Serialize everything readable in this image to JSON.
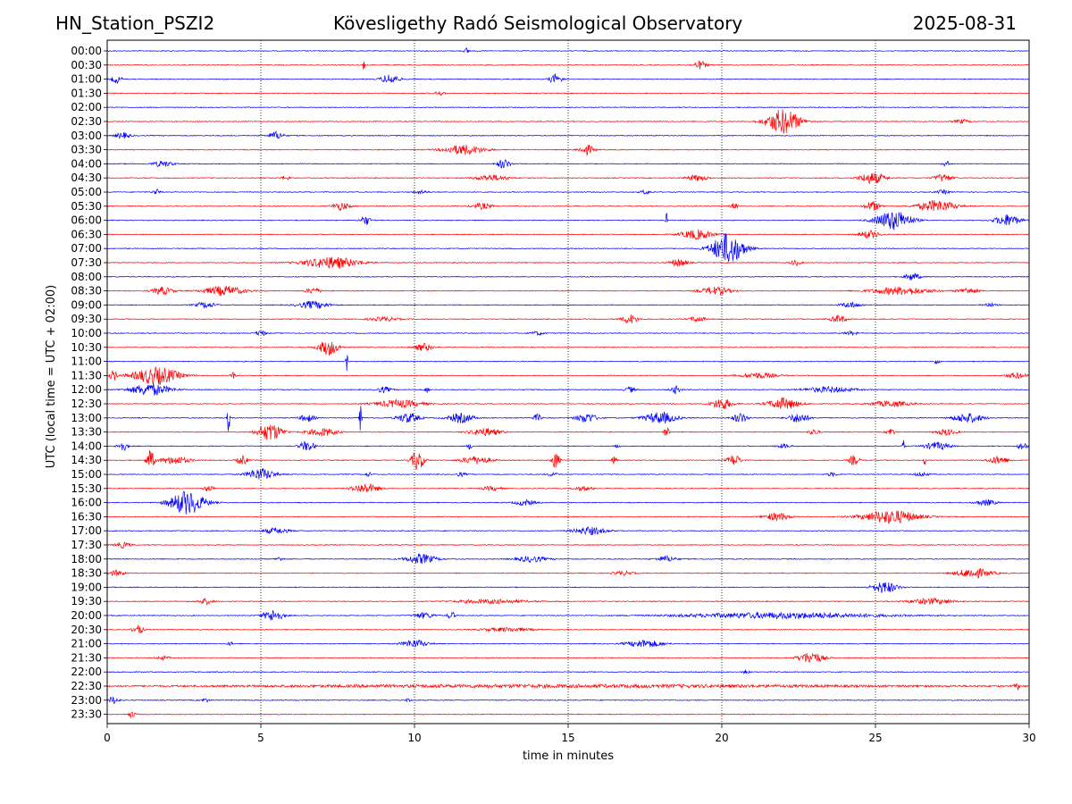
{
  "header": {
    "station": "HN_Station_PSZI2",
    "observatory": "Kövesligethy Radó Seismological Observatory",
    "date": "2025-08-31"
  },
  "chart_data": {
    "type": "line",
    "title": "Kövesligethy Radó Seismological Observatory",
    "xlabel": "time in minutes",
    "ylabel": "UTC (local time = UTC + 02:00)",
    "xlim": [
      0,
      30
    ],
    "x_ticks": [
      "0",
      "5",
      "10",
      "15",
      "20",
      "25",
      "30"
    ],
    "grid": "vertical dotted lines at 5, 10, 15, 20, 25 minutes",
    "trace_colors": [
      "#0000ff",
      "#ff0000"
    ],
    "rows": [
      {
        "label": "00:00",
        "color": "#0000ff",
        "events": [
          [
            11.7,
            0.2,
            0.3
          ]
        ]
      },
      {
        "label": "00:30",
        "color": "#ff0000",
        "events": [
          [
            8.35,
            0.05,
            1.3
          ],
          [
            19.3,
            0.5,
            0.4
          ]
        ]
      },
      {
        "label": "01:00",
        "color": "#0000ff",
        "events": [
          [
            0.3,
            0.4,
            0.4
          ],
          [
            9.2,
            0.7,
            0.5
          ],
          [
            14.6,
            0.5,
            0.5
          ]
        ]
      },
      {
        "label": "01:30",
        "color": "#ff0000",
        "events": [
          [
            10.8,
            0.4,
            0.2
          ]
        ]
      },
      {
        "label": "02:00",
        "color": "#0000ff",
        "events": []
      },
      {
        "label": "02:30",
        "color": "#ff0000",
        "events": [
          [
            22.0,
            1.3,
            1.3
          ],
          [
            27.8,
            0.6,
            0.2
          ]
        ]
      },
      {
        "label": "03:00",
        "color": "#0000ff",
        "events": [
          [
            0.5,
            0.6,
            0.3
          ],
          [
            5.5,
            0.6,
            0.4
          ]
        ]
      },
      {
        "label": "03:30",
        "color": "#ff0000",
        "events": [
          [
            11.6,
            1.6,
            0.5
          ],
          [
            15.6,
            0.6,
            0.5
          ]
        ]
      },
      {
        "label": "04:00",
        "color": "#0000ff",
        "events": [
          [
            1.8,
            0.8,
            0.3
          ],
          [
            12.9,
            0.5,
            0.5
          ],
          [
            27.3,
            0.3,
            0.3
          ]
        ]
      },
      {
        "label": "04:30",
        "color": "#ff0000",
        "events": [
          [
            5.8,
            0.4,
            0.2
          ],
          [
            12.5,
            1.3,
            0.3
          ],
          [
            19.2,
            0.8,
            0.3
          ],
          [
            24.9,
            1.0,
            0.6
          ],
          [
            27.2,
            0.7,
            0.4
          ]
        ]
      },
      {
        "label": "05:00",
        "color": "#0000ff",
        "events": [
          [
            1.6,
            0.3,
            0.3
          ],
          [
            10.2,
            0.5,
            0.2
          ],
          [
            17.5,
            0.4,
            0.2
          ],
          [
            27.2,
            0.5,
            0.2
          ]
        ]
      },
      {
        "label": "05:30",
        "color": "#ff0000",
        "events": [
          [
            7.6,
            0.7,
            0.4
          ],
          [
            12.2,
            0.8,
            0.3
          ],
          [
            20.4,
            0.3,
            0.3
          ],
          [
            24.9,
            0.6,
            0.5
          ],
          [
            27.0,
            1.5,
            0.6
          ]
        ]
      },
      {
        "label": "06:00",
        "color": "#0000ff",
        "events": [
          [
            8.4,
            0.4,
            0.5
          ],
          [
            18.2,
            0.06,
            0.8
          ],
          [
            25.6,
            1.4,
            1.0
          ],
          [
            29.3,
            1.0,
            0.6
          ]
        ]
      },
      {
        "label": "06:30",
        "color": "#ff0000",
        "events": [
          [
            19.2,
            1.3,
            0.5
          ],
          [
            24.8,
            0.8,
            0.4
          ]
        ]
      },
      {
        "label": "07:00",
        "color": "#0000ff",
        "events": [
          [
            20.2,
            1.3,
            1.6
          ]
        ]
      },
      {
        "label": "07:30",
        "color": "#ff0000",
        "events": [
          [
            7.3,
            2.2,
            0.6
          ],
          [
            18.6,
            0.7,
            0.4
          ],
          [
            22.4,
            0.4,
            0.3
          ]
        ]
      },
      {
        "label": "08:00",
        "color": "#0000ff",
        "events": [
          [
            26.2,
            0.6,
            0.4
          ]
        ]
      },
      {
        "label": "08:30",
        "color": "#ff0000",
        "events": [
          [
            1.8,
            0.8,
            0.4
          ],
          [
            3.8,
            1.6,
            0.5
          ],
          [
            6.7,
            0.6,
            0.3
          ],
          [
            19.8,
            1.2,
            0.4
          ],
          [
            25.8,
            2.4,
            0.4
          ],
          [
            28.0,
            0.8,
            0.3
          ]
        ]
      },
      {
        "label": "09:00",
        "color": "#0000ff",
        "events": [
          [
            3.2,
            0.8,
            0.3
          ],
          [
            6.7,
            1.2,
            0.4
          ],
          [
            24.2,
            0.8,
            0.3
          ],
          [
            28.7,
            0.5,
            0.2
          ]
        ]
      },
      {
        "label": "09:30",
        "color": "#ff0000",
        "events": [
          [
            9.0,
            1.2,
            0.2
          ],
          [
            17.0,
            0.6,
            0.5
          ],
          [
            19.2,
            0.6,
            0.3
          ],
          [
            23.8,
            0.6,
            0.4
          ]
        ]
      },
      {
        "label": "10:00",
        "color": "#0000ff",
        "events": [
          [
            5.0,
            0.4,
            0.3
          ],
          [
            14.0,
            0.5,
            0.2
          ],
          [
            24.2,
            0.5,
            0.2
          ]
        ]
      },
      {
        "label": "10:30",
        "color": "#ff0000",
        "events": [
          [
            7.2,
            0.8,
            0.8
          ],
          [
            10.3,
            0.7,
            0.4
          ]
        ]
      },
      {
        "label": "11:00",
        "color": "#0000ff",
        "events": [
          [
            7.8,
            0.08,
            1.4
          ],
          [
            27.0,
            0.2,
            0.3
          ]
        ]
      },
      {
        "label": "11:30",
        "color": "#ff0000",
        "events": [
          [
            0.2,
            0.3,
            0.5
          ],
          [
            1.6,
            1.8,
            0.9
          ],
          [
            4.1,
            0.2,
            0.3
          ],
          [
            21.2,
            1.4,
            0.3
          ],
          [
            29.6,
            0.8,
            0.3
          ]
        ]
      },
      {
        "label": "12:00",
        "color": "#0000ff",
        "events": [
          [
            1.4,
            1.6,
            0.6
          ],
          [
            9.0,
            0.6,
            0.3
          ],
          [
            10.4,
            0.2,
            0.3
          ],
          [
            17.0,
            0.4,
            0.3
          ],
          [
            18.5,
            0.4,
            0.4
          ],
          [
            23.5,
            2.0,
            0.3
          ]
        ]
      },
      {
        "label": "12:30",
        "color": "#ff0000",
        "events": [
          [
            9.5,
            1.8,
            0.4
          ],
          [
            20.0,
            0.8,
            0.6
          ],
          [
            22.0,
            1.2,
            0.6
          ],
          [
            25.5,
            1.6,
            0.3
          ]
        ]
      },
      {
        "label": "13:00",
        "color": "#0000ff",
        "events": [
          [
            3.95,
            0.1,
            1.5
          ],
          [
            6.5,
            0.6,
            0.4
          ],
          [
            8.25,
            0.1,
            1.5
          ],
          [
            9.8,
            0.9,
            0.5
          ],
          [
            11.5,
            1.0,
            0.5
          ],
          [
            14.0,
            0.3,
            0.4
          ],
          [
            15.6,
            0.8,
            0.5
          ],
          [
            18.0,
            1.3,
            0.6
          ],
          [
            20.6,
            0.6,
            0.5
          ],
          [
            22.5,
            0.8,
            0.5
          ],
          [
            28.0,
            1.2,
            0.5
          ]
        ]
      },
      {
        "label": "13:30",
        "color": "#ff0000",
        "events": [
          [
            5.3,
            1.0,
            0.9
          ],
          [
            7.0,
            1.2,
            0.4
          ],
          [
            12.3,
            1.2,
            0.4
          ],
          [
            18.2,
            0.2,
            0.6
          ],
          [
            23.0,
            0.4,
            0.3
          ],
          [
            25.5,
            0.3,
            0.4
          ],
          [
            27.3,
            0.8,
            0.3
          ]
        ]
      },
      {
        "label": "14:00",
        "color": "#0000ff",
        "events": [
          [
            0.5,
            0.4,
            0.5
          ],
          [
            6.5,
            0.6,
            0.5
          ],
          [
            11.8,
            0.2,
            0.3
          ],
          [
            16.6,
            0.2,
            0.2
          ],
          [
            22.0,
            0.6,
            0.2
          ],
          [
            25.9,
            0.1,
            0.8
          ],
          [
            27.0,
            1.0,
            0.4
          ],
          [
            29.8,
            0.4,
            0.4
          ]
        ]
      },
      {
        "label": "14:30",
        "color": "#ff0000",
        "events": [
          [
            1.4,
            0.3,
            1.1
          ],
          [
            2.2,
            1.2,
            0.4
          ],
          [
            4.4,
            0.4,
            0.5
          ],
          [
            10.1,
            0.5,
            1.0
          ],
          [
            12.0,
            1.2,
            0.4
          ],
          [
            14.6,
            0.3,
            0.9
          ],
          [
            16.5,
            0.2,
            0.4
          ],
          [
            20.4,
            0.5,
            0.6
          ],
          [
            24.3,
            0.4,
            0.5
          ],
          [
            26.6,
            0.1,
            0.6
          ],
          [
            29.0,
            0.8,
            0.4
          ]
        ]
      },
      {
        "label": "15:00",
        "color": "#0000ff",
        "events": [
          [
            5.0,
            1.1,
            0.6
          ],
          [
            8.5,
            0.3,
            0.2
          ],
          [
            11.5,
            0.4,
            0.2
          ],
          [
            14.5,
            0.4,
            0.2
          ],
          [
            23.6,
            0.4,
            0.2
          ],
          [
            26.5,
            0.6,
            0.2
          ]
        ]
      },
      {
        "label": "15:30",
        "color": "#ff0000",
        "events": [
          [
            3.3,
            0.4,
            0.3
          ],
          [
            8.4,
            1.0,
            0.5
          ],
          [
            12.5,
            0.8,
            0.2
          ],
          [
            15.5,
            0.8,
            0.2
          ]
        ]
      },
      {
        "label": "16:00",
        "color": "#0000ff",
        "events": [
          [
            2.6,
            1.4,
            1.2
          ],
          [
            13.6,
            0.8,
            0.3
          ],
          [
            28.6,
            0.8,
            0.3
          ]
        ]
      },
      {
        "label": "16:30",
        "color": "#ff0000",
        "events": [
          [
            21.8,
            1.0,
            0.4
          ],
          [
            25.5,
            2.2,
            0.7
          ]
        ]
      },
      {
        "label": "17:00",
        "color": "#0000ff",
        "events": [
          [
            5.5,
            1.0,
            0.3
          ],
          [
            15.7,
            1.3,
            0.4
          ]
        ]
      },
      {
        "label": "17:30",
        "color": "#ff0000",
        "events": [
          [
            0.5,
            0.6,
            0.3
          ]
        ]
      },
      {
        "label": "18:00",
        "color": "#0000ff",
        "events": [
          [
            5.6,
            0.3,
            0.2
          ],
          [
            10.2,
            1.2,
            0.5
          ],
          [
            13.8,
            1.2,
            0.3
          ],
          [
            18.2,
            0.8,
            0.3
          ]
        ]
      },
      {
        "label": "18:30",
        "color": "#ff0000",
        "events": [
          [
            0.3,
            0.6,
            0.3
          ],
          [
            16.8,
            0.8,
            0.2
          ],
          [
            28.2,
            1.4,
            0.5
          ]
        ]
      },
      {
        "label": "19:00",
        "color": "#0000ff",
        "events": [
          [
            25.3,
            1.0,
            0.6
          ]
        ]
      },
      {
        "label": "19:30",
        "color": "#ff0000",
        "events": [
          [
            3.2,
            0.6,
            0.3
          ],
          [
            12.5,
            3.0,
            0.2
          ],
          [
            26.8,
            1.8,
            0.3
          ]
        ]
      },
      {
        "label": "20:00",
        "color": "#0000ff",
        "events": [
          [
            5.4,
            0.8,
            0.6
          ],
          [
            10.3,
            0.8,
            0.3
          ],
          [
            11.2,
            0.3,
            0.4
          ],
          [
            22.0,
            8.0,
            0.3
          ]
        ]
      },
      {
        "label": "20:30",
        "color": "#ff0000",
        "events": [
          [
            1.0,
            0.4,
            0.5
          ],
          [
            13.0,
            2.0,
            0.2
          ]
        ]
      },
      {
        "label": "21:00",
        "color": "#0000ff",
        "events": [
          [
            4.0,
            0.2,
            0.2
          ],
          [
            10.0,
            1.0,
            0.4
          ],
          [
            17.5,
            1.4,
            0.4
          ]
        ]
      },
      {
        "label": "21:30",
        "color": "#ff0000",
        "events": [
          [
            1.8,
            0.5,
            0.2
          ],
          [
            22.9,
            1.0,
            0.6
          ]
        ]
      },
      {
        "label": "22:00",
        "color": "#0000ff",
        "events": [
          [
            20.8,
            0.2,
            0.3
          ]
        ]
      },
      {
        "label": "22:30",
        "color": "#ff0000",
        "events": [
          [
            15.0,
            30.0,
            0.15
          ],
          [
            29.6,
            0.2,
            0.4
          ]
        ]
      },
      {
        "label": "23:00",
        "color": "#0000ff",
        "events": [
          [
            0.2,
            0.4,
            0.4
          ],
          [
            3.2,
            0.3,
            0.2
          ],
          [
            9.8,
            0.2,
            0.2
          ]
        ]
      },
      {
        "label": "23:30",
        "color": "#ff0000",
        "events": [
          [
            0.8,
            0.3,
            0.3
          ]
        ]
      }
    ]
  }
}
